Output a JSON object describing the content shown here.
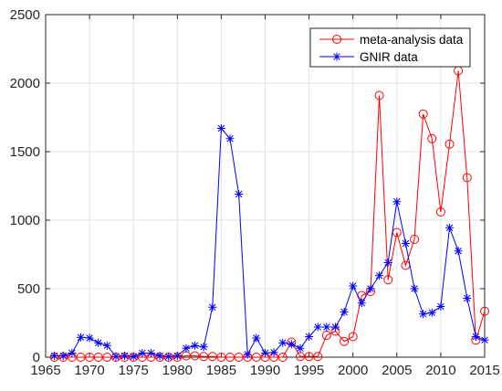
{
  "chart_data": {
    "type": "line",
    "title": "",
    "xlabel": "",
    "ylabel": "",
    "xlim": [
      1965,
      2015
    ],
    "ylim": [
      0,
      2500
    ],
    "x_ticks": [
      1965,
      1970,
      1975,
      1980,
      1985,
      1990,
      1995,
      2000,
      2005,
      2010,
      2015
    ],
    "y_ticks": [
      0,
      500,
      1000,
      1500,
      2000,
      2500
    ],
    "grid": true,
    "legend_position": "top-right",
    "series": [
      {
        "name": "meta-analysis data",
        "color": "#ff0000",
        "marker": "circle",
        "points": [
          [
            1966,
            0
          ],
          [
            1967,
            0
          ],
          [
            1968,
            0
          ],
          [
            1969,
            0
          ],
          [
            1970,
            0
          ],
          [
            1971,
            0
          ],
          [
            1972,
            0
          ],
          [
            1973,
            0
          ],
          [
            1974,
            0
          ],
          [
            1975,
            0
          ],
          [
            1976,
            0
          ],
          [
            1977,
            0
          ],
          [
            1978,
            0
          ],
          [
            1979,
            0
          ],
          [
            1980,
            0
          ],
          [
            1981,
            10
          ],
          [
            1982,
            10
          ],
          [
            1983,
            5
          ],
          [
            1984,
            5
          ],
          [
            1985,
            0
          ],
          [
            1986,
            0
          ],
          [
            1987,
            0
          ],
          [
            1988,
            0
          ],
          [
            1989,
            0
          ],
          [
            1990,
            0
          ],
          [
            1991,
            0
          ],
          [
            1992,
            0
          ],
          [
            1993,
            110
          ],
          [
            1994,
            5
          ],
          [
            1995,
            5
          ],
          [
            1996,
            5
          ],
          [
            1997,
            160
          ],
          [
            1998,
            190
          ],
          [
            1999,
            115
          ],
          [
            2000,
            150
          ],
          [
            2001,
            450
          ],
          [
            2002,
            480
          ],
          [
            2003,
            1910
          ],
          [
            2004,
            565
          ],
          [
            2005,
            910
          ],
          [
            2006,
            670
          ],
          [
            2007,
            860
          ],
          [
            2008,
            1775
          ],
          [
            2009,
            1595
          ],
          [
            2010,
            1060
          ],
          [
            2011,
            1555
          ],
          [
            2012,
            2090
          ],
          [
            2013,
            1310
          ],
          [
            2014,
            125
          ],
          [
            2015,
            335
          ]
        ]
      },
      {
        "name": "GNIR data",
        "color": "#0000ff",
        "marker": "star",
        "points": [
          [
            1966,
            10
          ],
          [
            1967,
            10
          ],
          [
            1968,
            30
          ],
          [
            1969,
            145
          ],
          [
            1970,
            140
          ],
          [
            1971,
            105
          ],
          [
            1972,
            85
          ],
          [
            1973,
            5
          ],
          [
            1974,
            10
          ],
          [
            1975,
            5
          ],
          [
            1976,
            30
          ],
          [
            1977,
            30
          ],
          [
            1978,
            10
          ],
          [
            1979,
            5
          ],
          [
            1980,
            10
          ],
          [
            1981,
            65
          ],
          [
            1982,
            85
          ],
          [
            1983,
            75
          ],
          [
            1984,
            365
          ],
          [
            1985,
            1670
          ],
          [
            1986,
            1595
          ],
          [
            1987,
            1190
          ],
          [
            1988,
            20
          ],
          [
            1989,
            140
          ],
          [
            1990,
            30
          ],
          [
            1991,
            35
          ],
          [
            1992,
            105
          ],
          [
            1993,
            95
          ],
          [
            1994,
            65
          ],
          [
            1995,
            150
          ],
          [
            1996,
            220
          ],
          [
            1997,
            220
          ],
          [
            1998,
            220
          ],
          [
            1999,
            330
          ],
          [
            2000,
            520
          ],
          [
            2001,
            395
          ],
          [
            2002,
            500
          ],
          [
            2003,
            595
          ],
          [
            2004,
            690
          ],
          [
            2005,
            1135
          ],
          [
            2006,
            830
          ],
          [
            2007,
            500
          ],
          [
            2008,
            315
          ],
          [
            2009,
            325
          ],
          [
            2010,
            370
          ],
          [
            2011,
            945
          ],
          [
            2012,
            775
          ],
          [
            2013,
            430
          ],
          [
            2014,
            150
          ],
          [
            2015,
            125
          ]
        ]
      }
    ]
  }
}
